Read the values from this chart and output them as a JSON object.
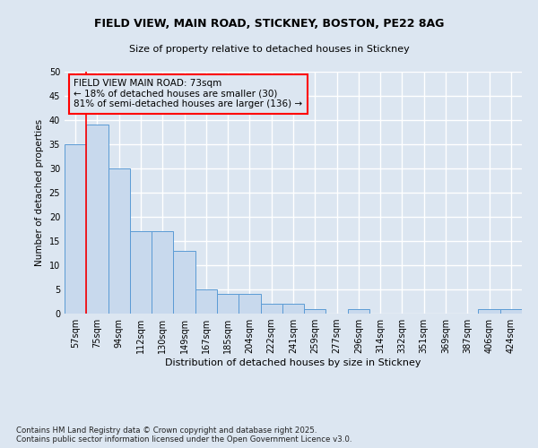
{
  "title": "FIELD VIEW, MAIN ROAD, STICKNEY, BOSTON, PE22 8AG",
  "subtitle": "Size of property relative to detached houses in Stickney",
  "xlabel": "Distribution of detached houses by size in Stickney",
  "ylabel": "Number of detached properties",
  "categories": [
    "57sqm",
    "75sqm",
    "94sqm",
    "112sqm",
    "130sqm",
    "149sqm",
    "167sqm",
    "185sqm",
    "204sqm",
    "222sqm",
    "241sqm",
    "259sqm",
    "277sqm",
    "296sqm",
    "314sqm",
    "332sqm",
    "351sqm",
    "369sqm",
    "387sqm",
    "406sqm",
    "424sqm"
  ],
  "values": [
    35,
    39,
    30,
    17,
    17,
    13,
    5,
    4,
    4,
    2,
    2,
    1,
    0,
    1,
    0,
    0,
    0,
    0,
    0,
    1,
    1
  ],
  "bar_color": "#c8d9ed",
  "bar_edge_color": "#5b9bd5",
  "background_color": "#dce6f1",
  "grid_color": "#ffffff",
  "annotation_box_text": "FIELD VIEW MAIN ROAD: 73sqm\n← 18% of detached houses are smaller (30)\n81% of semi-detached houses are larger (136) →",
  "ylim": [
    0,
    50
  ],
  "yticks": [
    0,
    5,
    10,
    15,
    20,
    25,
    30,
    35,
    40,
    45,
    50
  ],
  "footer": "Contains HM Land Registry data © Crown copyright and database right 2025.\nContains public sector information licensed under the Open Government Licence v3.0."
}
